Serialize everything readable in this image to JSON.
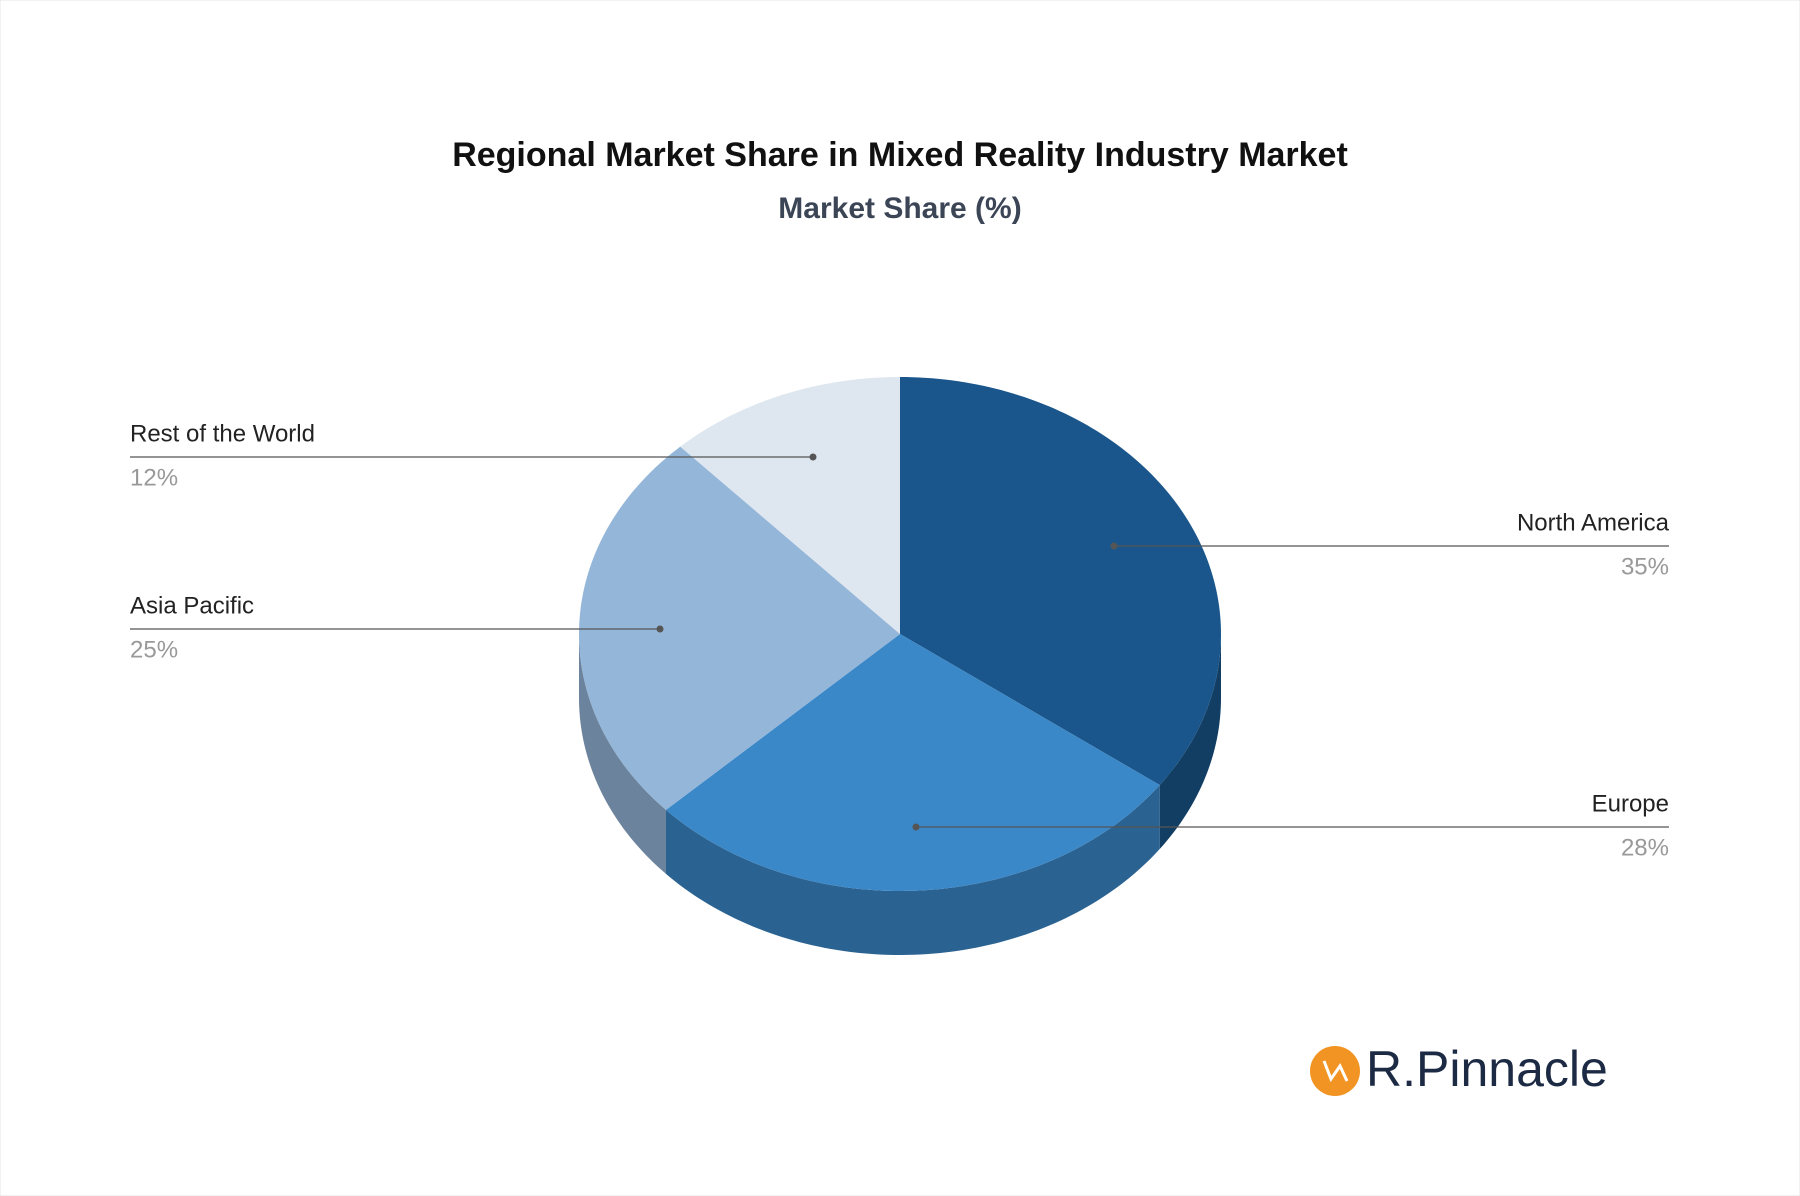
{
  "chart_data": {
    "type": "pie",
    "title": "Regional Market Share in Mixed Reality Industry Market",
    "subtitle": "Market Share (%)",
    "categories": [
      "North America",
      "Europe",
      "Asia Pacific",
      "Rest of the World"
    ],
    "values": [
      35,
      28,
      25,
      12
    ],
    "value_labels": [
      "35%",
      "28%",
      "25%",
      "12%"
    ],
    "colors": [
      "#1a568b",
      "#3b88c9",
      "#94b6d9",
      "#dee6ef"
    ],
    "brand": "R.Pinnacle"
  }
}
